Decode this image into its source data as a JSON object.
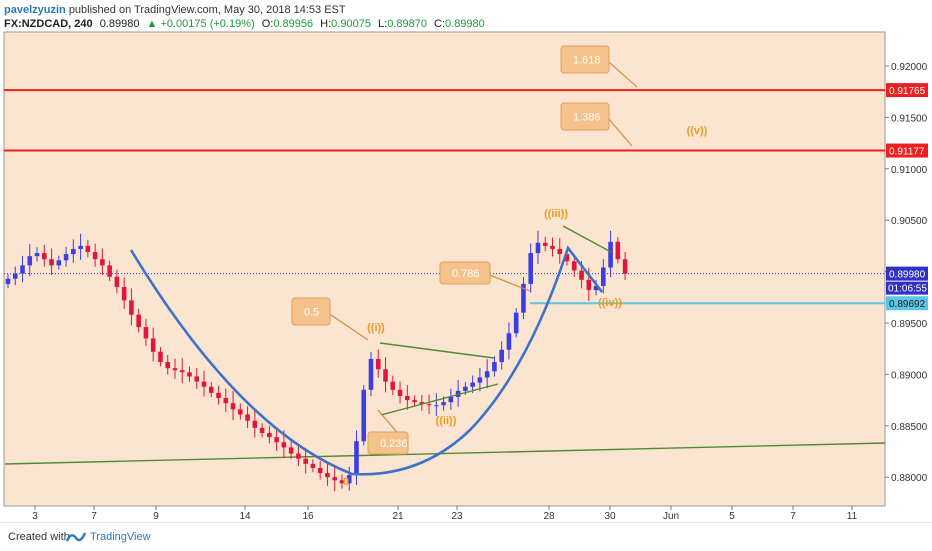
{
  "header": {
    "user": "pavelzyuzin",
    "published": "published on TradingView.com, May 30, 2018 14:53 EST",
    "symbol": "FX:NZDCAD, 240",
    "last": "0.89980",
    "change": "▲ +0.00175 (+0.19%)",
    "o_label": "O:",
    "o": "0.89956",
    "h_label": "H:",
    "h": "0.90075",
    "l_label": "L:",
    "l": "0.89870",
    "c_label": "C:",
    "c": "0.89980"
  },
  "footer": {
    "created_label": "Created with",
    "brand": "TradingView"
  },
  "colors": {
    "background": "#fbe5d0",
    "up_candle": "#3b3ee0",
    "down_candle": "#e0163a",
    "resistance": "#ee1f1f",
    "support": "#5cc6e6",
    "trend": "#4e8a32",
    "arc": "#3d72c8",
    "fib_box": "#f4c28a",
    "wave_label": "#ef9a1e",
    "last_price": "#3330c8"
  },
  "chart_data": {
    "type": "candlestick",
    "ylim": [
      0.8772,
      0.9233
    ],
    "y_ticks": [
      "0.92000",
      "0.91500",
      "0.91000",
      "0.90500",
      "0.90000",
      "0.89500",
      "0.89000",
      "0.88500",
      "0.88000"
    ],
    "x_tick_labels": [
      "3",
      "7",
      "9",
      "14",
      "16",
      "21",
      "23",
      "28",
      "30",
      "Jun",
      "5",
      "7",
      "11"
    ],
    "price_tags": {
      "level_1618": "0.91765",
      "level_1386": "0.91177",
      "last": "0.89980",
      "countdown": "01:06:55",
      "support": "0.89692"
    },
    "levels": [
      {
        "name": "1.618",
        "value": 0.91765
      },
      {
        "name": "1.386",
        "value": 0.91177
      },
      {
        "name": "support",
        "value": 0.89692
      }
    ],
    "fib_labels": [
      "1.618",
      "1.386",
      "0.786",
      "0.5",
      "0.236"
    ],
    "wave_labels": [
      "((i))",
      "((ii))",
      "((iii))",
      "((iv))",
      "((v))",
      "0"
    ],
    "close_series": [
      0.8993,
      0.8998,
      0.9006,
      0.9015,
      0.9018,
      0.9012,
      0.9006,
      0.9011,
      0.9017,
      0.9022,
      0.9025,
      0.9019,
      0.9012,
      0.9006,
      0.8995,
      0.8985,
      0.8972,
      0.8958,
      0.8946,
      0.8935,
      0.8922,
      0.8912,
      0.8906,
      0.8904,
      0.8902,
      0.8898,
      0.8893,
      0.8888,
      0.8882,
      0.8877,
      0.8872,
      0.8866,
      0.8861,
      0.8855,
      0.8848,
      0.8843,
      0.8839,
      0.8834,
      0.8829,
      0.8823,
      0.8818,
      0.8813,
      0.8809,
      0.8804,
      0.88,
      0.8797,
      0.8794,
      0.8802,
      0.8835,
      0.8885,
      0.8915,
      0.8905,
      0.8893,
      0.8885,
      0.8879,
      0.8875,
      0.8873,
      0.8871,
      0.887,
      0.887,
      0.8873,
      0.8878,
      0.8884,
      0.8888,
      0.8892,
      0.8897,
      0.8903,
      0.8912,
      0.8924,
      0.894,
      0.896,
      0.8988,
      0.9018,
      0.9028,
      0.9025,
      0.9022,
      0.9017,
      0.901,
      0.9001,
      0.8992,
      0.8982,
      0.8986,
      0.9004,
      0.9029,
      0.9012,
      0.8998
    ]
  }
}
